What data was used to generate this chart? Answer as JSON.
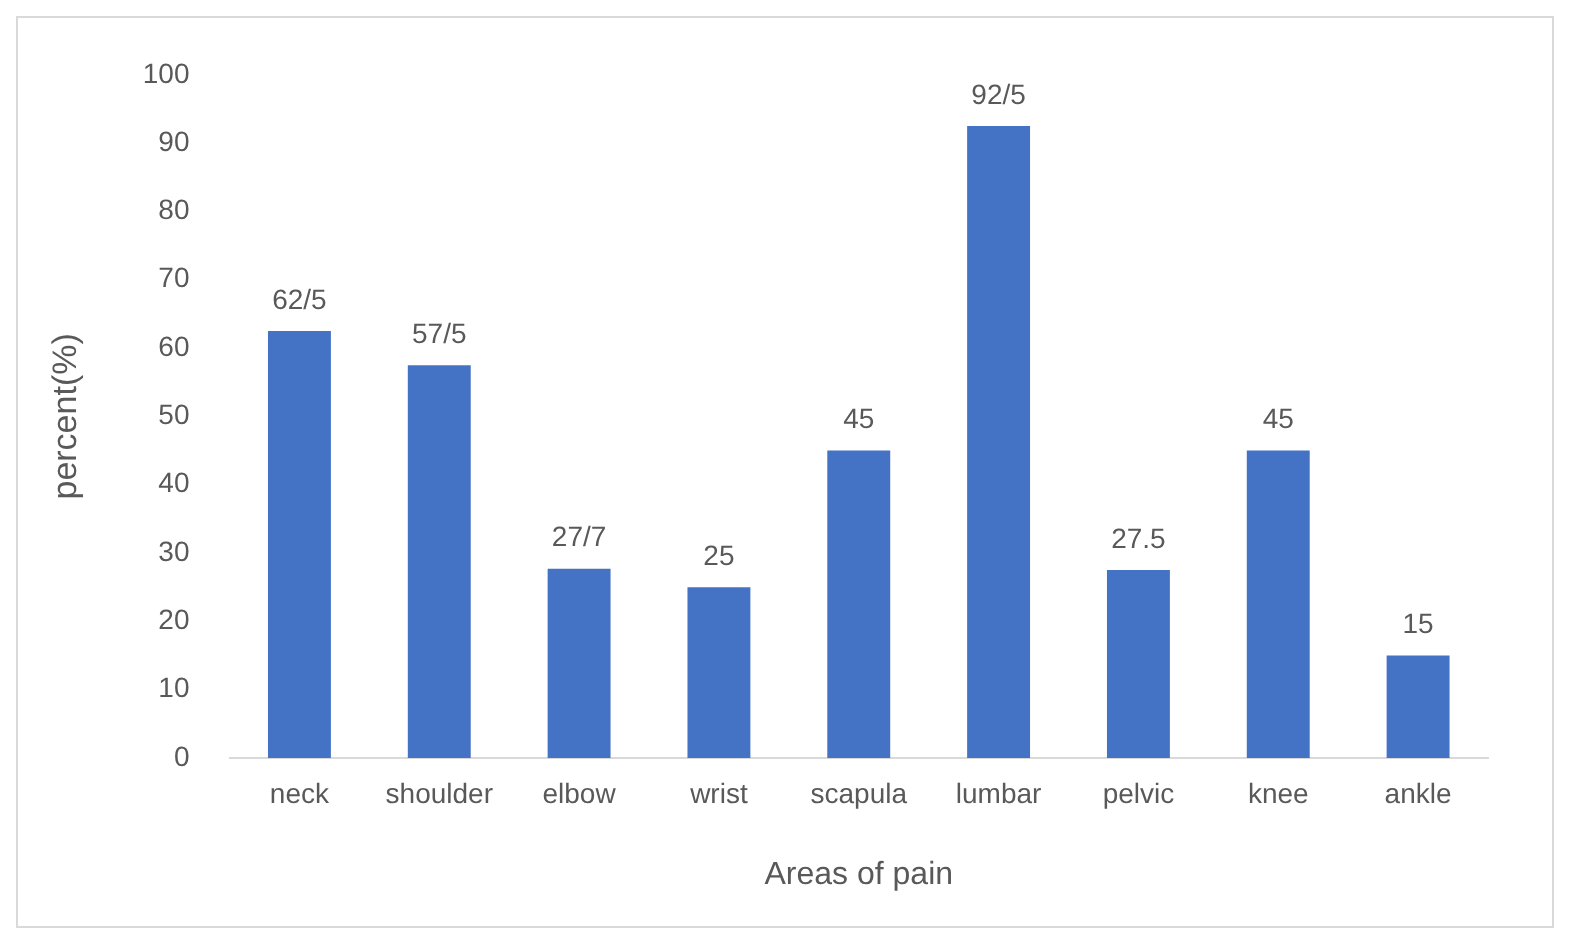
{
  "chart_data": {
    "type": "bar",
    "xlabel": "Areas of pain",
    "ylabel": "percent(%)",
    "categories": [
      "neck",
      "shoulder",
      "elbow",
      "wrist",
      "scapula",
      "lumbar",
      "pelvic",
      "knee",
      "ankle"
    ],
    "values": [
      62.5,
      57.5,
      27.7,
      25,
      45,
      92.5,
      27.5,
      45,
      15
    ],
    "value_labels": [
      "62/5",
      "57/5",
      "27/7",
      "25",
      "45",
      "92/5",
      "27.5",
      "45",
      "15"
    ],
    "color": "#4472c4",
    "ylim": [
      0,
      100
    ],
    "yticks": [
      0,
      10,
      20,
      30,
      40,
      50,
      60,
      70,
      80,
      90,
      100
    ],
    "grid": false,
    "legend": false
  }
}
